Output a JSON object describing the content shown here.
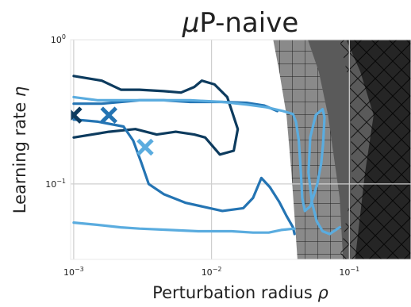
{
  "chart_data": {
    "type": "line",
    "title_prefix": "μ",
    "title_suffix": "P-naive",
    "xlabel_text": "Perturbation radius ",
    "xlabel_symbol": "ρ",
    "ylabel_text": "Learning rate ",
    "ylabel_symbol": "η",
    "x_scale": "log",
    "y_scale": "log",
    "xlim": [
      0.00095,
      0.28
    ],
    "ylim": [
      0.03,
      1.0
    ],
    "grid": true,
    "x_ticks": [
      {
        "base": "10",
        "exp": "−3",
        "value": 0.001
      },
      {
        "base": "10",
        "exp": "−2",
        "value": 0.01
      },
      {
        "base": "10",
        "exp": "−1",
        "value": 0.1
      }
    ],
    "y_ticks": [
      {
        "base": "10",
        "exp": "0",
        "value": 1.0
      },
      {
        "base": "10",
        "exp": "−1",
        "value": 0.1
      }
    ],
    "colors": {
      "dark": "#0d3b5e",
      "mid": "#2474b3",
      "light": "#5aacdf",
      "grid": "#cfcfcf",
      "shade_light": "#8a8a8a",
      "shade_mid": "#5a5a5a",
      "shade_dark": "#252525"
    },
    "series": [
      {
        "color_key": "dark",
        "points": [
          [
            0.001,
            0.56
          ],
          [
            0.0016,
            0.52
          ],
          [
            0.0022,
            0.45
          ],
          [
            0.003,
            0.45
          ],
          [
            0.0045,
            0.44
          ],
          [
            0.006,
            0.43
          ],
          [
            0.0075,
            0.47
          ],
          [
            0.0085,
            0.52
          ],
          [
            0.0105,
            0.49
          ],
          [
            0.013,
            0.4
          ],
          [
            0.0155,
            0.24
          ],
          [
            0.0145,
            0.17
          ],
          [
            0.0115,
            0.16
          ],
          [
            0.009,
            0.21
          ],
          [
            0.0075,
            0.22
          ],
          [
            0.0055,
            0.23
          ],
          [
            0.004,
            0.22
          ],
          [
            0.0028,
            0.24
          ],
          [
            0.0018,
            0.23
          ],
          [
            0.001,
            0.21
          ]
        ]
      },
      {
        "color_key": "mid",
        "points": [
          [
            0.001,
            0.36
          ],
          [
            0.0016,
            0.36
          ],
          [
            0.0022,
            0.37
          ],
          [
            0.003,
            0.38
          ],
          [
            0.0045,
            0.38
          ],
          [
            0.007,
            0.37
          ],
          [
            0.012,
            0.37
          ],
          [
            0.018,
            0.365
          ],
          [
            0.024,
            0.35
          ],
          [
            0.03,
            0.32
          ]
        ],
        "tail": [
          [
            0.001,
            0.28
          ],
          [
            0.0015,
            0.27
          ],
          [
            0.0023,
            0.25
          ],
          [
            0.0027,
            0.2
          ],
          [
            0.0031,
            0.14
          ],
          [
            0.0035,
            0.1
          ],
          [
            0.0045,
            0.085
          ],
          [
            0.0065,
            0.074
          ],
          [
            0.012,
            0.065
          ],
          [
            0.017,
            0.068
          ],
          [
            0.02,
            0.08
          ],
          [
            0.023,
            0.11
          ],
          [
            0.0265,
            0.095
          ],
          [
            0.031,
            0.075
          ],
          [
            0.035,
            0.06
          ],
          [
            0.039,
            0.05
          ],
          [
            0.04,
            0.045
          ]
        ]
      },
      {
        "color_key": "light",
        "points": [
          [
            0.001,
            0.4
          ],
          [
            0.0015,
            0.38
          ],
          [
            0.0022,
            0.38
          ],
          [
            0.003,
            0.38
          ],
          [
            0.0045,
            0.38
          ],
          [
            0.007,
            0.38
          ],
          [
            0.012,
            0.37
          ],
          [
            0.018,
            0.355
          ],
          [
            0.025,
            0.34
          ],
          [
            0.033,
            0.32
          ],
          [
            0.039,
            0.305
          ],
          [
            0.041,
            0.27
          ],
          [
            0.043,
            0.2
          ],
          [
            0.0445,
            0.12
          ],
          [
            0.0455,
            0.08
          ],
          [
            0.0475,
            0.065
          ],
          [
            0.052,
            0.07
          ],
          [
            0.0585,
            0.1
          ],
          [
            0.0625,
            0.14
          ],
          [
            0.0645,
            0.19
          ],
          [
            0.066,
            0.29
          ],
          [
            0.064,
            0.33
          ],
          [
            0.057,
            0.3
          ],
          [
            0.052,
            0.21
          ],
          [
            0.0505,
            0.12
          ],
          [
            0.0535,
            0.075
          ],
          [
            0.058,
            0.055
          ],
          [
            0.064,
            0.047
          ],
          [
            0.072,
            0.045
          ],
          [
            0.085,
            0.05
          ]
        ],
        "tail": [
          [
            0.001,
            0.054
          ],
          [
            0.0015,
            0.052
          ],
          [
            0.0022,
            0.05
          ],
          [
            0.003,
            0.049
          ],
          [
            0.005,
            0.048
          ],
          [
            0.008,
            0.047
          ],
          [
            0.014,
            0.047
          ],
          [
            0.02,
            0.046
          ],
          [
            0.026,
            0.046
          ],
          [
            0.032,
            0.048
          ],
          [
            0.04,
            0.049
          ]
        ]
      }
    ],
    "markers": [
      {
        "x": 0.001,
        "y": 0.3,
        "color_key": "dark"
      },
      {
        "x": 0.0018,
        "y": 0.3,
        "color_key": "mid"
      },
      {
        "x": 0.0033,
        "y": 0.18,
        "color_key": "light"
      }
    ]
  }
}
